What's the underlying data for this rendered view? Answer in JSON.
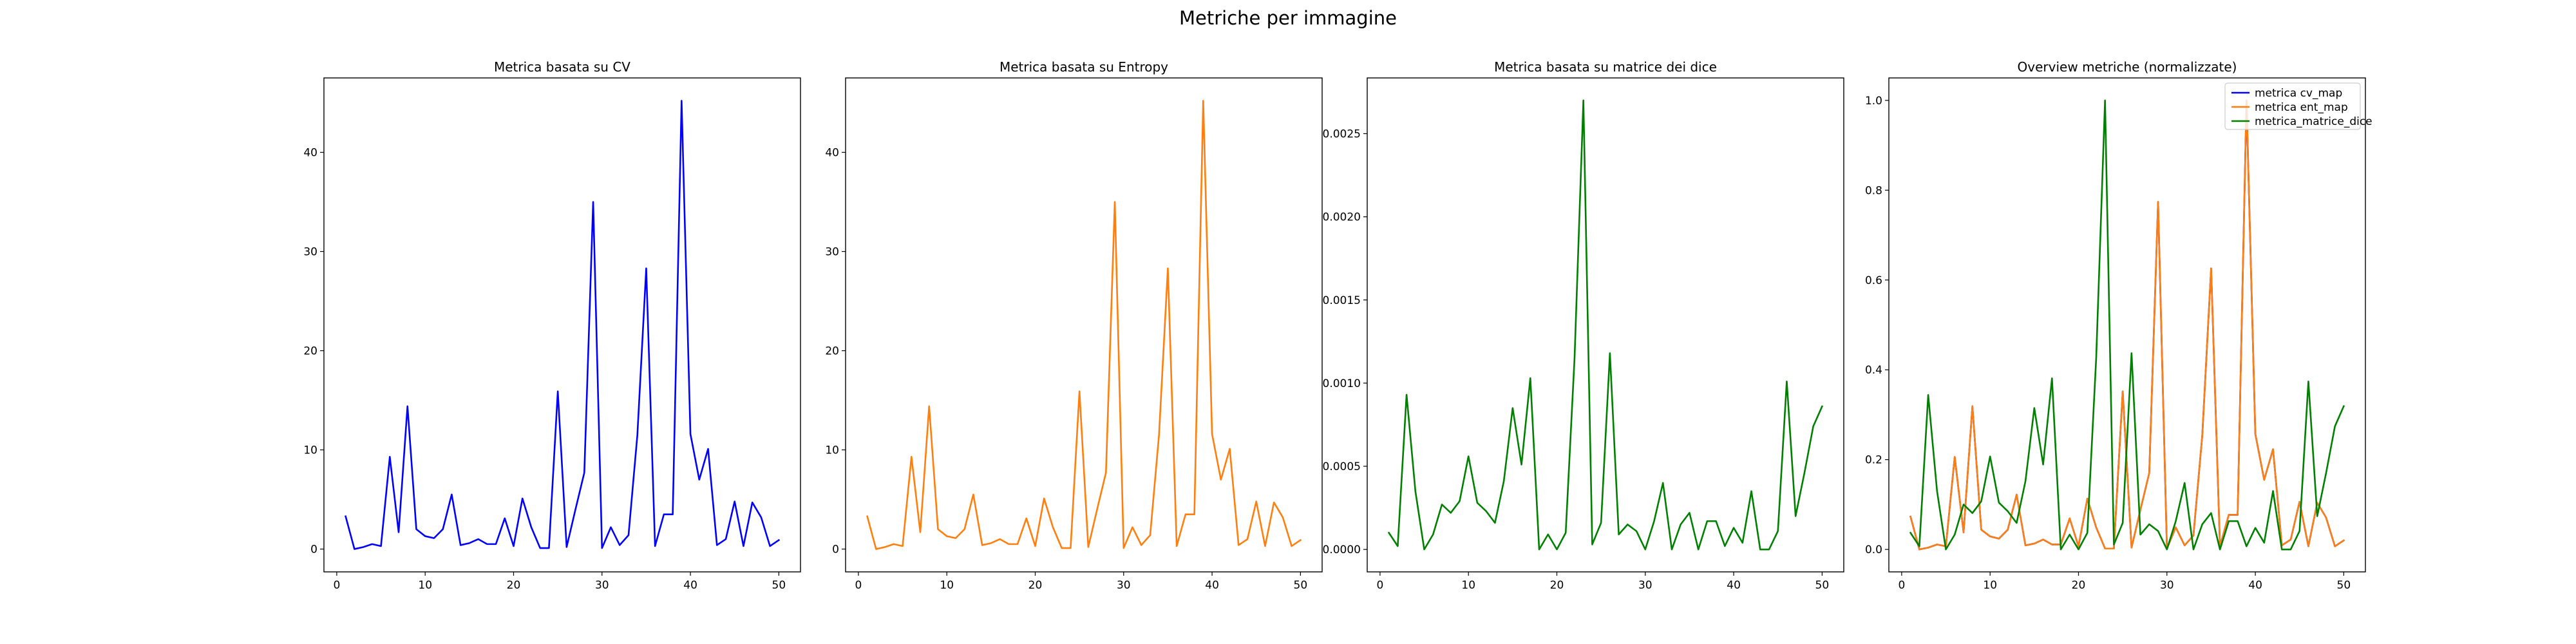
{
  "figure": {
    "title": "Metriche per immagine"
  },
  "chart_data": [
    {
      "type": "line",
      "title": "Metrica basata su CV",
      "xlabel": "",
      "ylabel": "",
      "xlim": [
        -1.45,
        52.45
      ],
      "ylim": [
        -2.3,
        47.5
      ],
      "xticks": [
        0,
        10,
        20,
        30,
        40,
        50
      ],
      "yticks": [
        0,
        10,
        20,
        30,
        40
      ],
      "grid": false,
      "legend": "none",
      "series": [
        {
          "color": "#0000ff",
          "x": [
            1,
            2,
            3,
            4,
            5,
            6,
            7,
            8,
            9,
            10,
            11,
            12,
            13,
            14,
            15,
            16,
            17,
            18,
            19,
            20,
            21,
            22,
            23,
            24,
            25,
            26,
            27,
            28,
            29,
            30,
            31,
            32,
            33,
            34,
            35,
            36,
            37,
            38,
            39,
            40,
            41,
            42,
            43,
            44,
            45,
            46,
            47,
            48,
            49,
            50
          ],
          "y": [
            3.3,
            0,
            0.2,
            0.5,
            0.3,
            9.3,
            1.7,
            14.4,
            2,
            1.3,
            1.1,
            2,
            5.5,
            0.4,
            0.6,
            1,
            0.5,
            0.5,
            3.1,
            0.3,
            5.1,
            2.2,
            0.1,
            0.1,
            15.9,
            0.2,
            4,
            7.7,
            35,
            0.1,
            2.2,
            0.4,
            1.4,
            11.5,
            28.3,
            0.3,
            3.5,
            3.5,
            45.2,
            11.6,
            7,
            10.1,
            0.4,
            1,
            4.8,
            0.3,
            4.7,
            3.2,
            0.3,
            0.9
          ]
        }
      ]
    },
    {
      "type": "line",
      "title": "Metrica basata su Entropy",
      "xlabel": "",
      "ylabel": "",
      "xlim": [
        -1.45,
        52.45
      ],
      "ylim": [
        -2.3,
        47.5
      ],
      "xticks": [
        0,
        10,
        20,
        30,
        40,
        50
      ],
      "yticks": [
        0,
        10,
        20,
        30,
        40
      ],
      "grid": false,
      "legend": "none",
      "series": [
        {
          "color": "#ff7f0e",
          "x": [
            1,
            2,
            3,
            4,
            5,
            6,
            7,
            8,
            9,
            10,
            11,
            12,
            13,
            14,
            15,
            16,
            17,
            18,
            19,
            20,
            21,
            22,
            23,
            24,
            25,
            26,
            27,
            28,
            29,
            30,
            31,
            32,
            33,
            34,
            35,
            36,
            37,
            38,
            39,
            40,
            41,
            42,
            43,
            44,
            45,
            46,
            47,
            48,
            49,
            50
          ],
          "y": [
            3.3,
            0,
            0.2,
            0.5,
            0.3,
            9.3,
            1.7,
            14.4,
            2,
            1.3,
            1.1,
            2,
            5.5,
            0.4,
            0.6,
            1,
            0.5,
            0.5,
            3.1,
            0.3,
            5.1,
            2.2,
            0.1,
            0.1,
            15.9,
            0.2,
            4,
            7.7,
            35,
            0.1,
            2.2,
            0.4,
            1.4,
            11.5,
            28.3,
            0.3,
            3.5,
            3.5,
            45.2,
            11.6,
            7,
            10.1,
            0.4,
            1,
            4.8,
            0.3,
            4.7,
            3.2,
            0.3,
            0.9
          ]
        }
      ]
    },
    {
      "type": "line",
      "title": "Metrica basata su matrice dei dice",
      "xlabel": "",
      "ylabel": "",
      "xlim": [
        -1.45,
        52.45
      ],
      "ylim": [
        -0.000135,
        0.002835
      ],
      "xticks": [
        0,
        10,
        20,
        30,
        40,
        50
      ],
      "yticks": [
        0,
        0.0005,
        0.001,
        0.0015,
        0.002,
        0.0025
      ],
      "ytick_labels": [
        "0.0000",
        "0.0005",
        "0.0010",
        "0.0015",
        "0.0020",
        "0.0025"
      ],
      "grid": false,
      "legend": "none",
      "series": [
        {
          "color": "#008000",
          "x": [
            1,
            2,
            3,
            4,
            5,
            6,
            7,
            8,
            9,
            10,
            11,
            12,
            13,
            14,
            15,
            16,
            17,
            18,
            19,
            20,
            21,
            22,
            23,
            24,
            25,
            26,
            27,
            28,
            29,
            30,
            31,
            32,
            33,
            34,
            35,
            36,
            37,
            38,
            39,
            40,
            41,
            42,
            43,
            44,
            45,
            46,
            47,
            48,
            49,
            50
          ],
          "y": [
            0.0001,
            2e-05,
            0.00093,
            0.00035,
            0,
            9e-05,
            0.00027,
            0.00022,
            0.00029,
            0.00056,
            0.00028,
            0.00023,
            0.00016,
            0.00041,
            0.00085,
            0.00051,
            0.00103,
            0,
            9e-05,
            0,
            0.0001,
            0.00115,
            0.0027,
            3e-05,
            0.00016,
            0.00118,
            9e-05,
            0.00015,
            0.00011,
            0,
            0.00017,
            0.0004,
            0,
            0.00015,
            0.00022,
            0,
            0.00017,
            0.00017,
            2e-05,
            0.00013,
            4e-05,
            0.00035,
            0,
            0,
            0.00011,
            0.00101,
            0.0002,
            0.00046,
            0.00074,
            0.00086
          ]
        }
      ]
    },
    {
      "type": "line",
      "title": "Overview metriche (normalizzate)",
      "xlabel": "",
      "ylabel": "",
      "xlim": [
        -1.45,
        52.45
      ],
      "ylim": [
        -0.05,
        1.05
      ],
      "xticks": [
        0,
        10,
        20,
        30,
        40,
        50
      ],
      "yticks": [
        0,
        0.2,
        0.4,
        0.6,
        0.8,
        1.0
      ],
      "ytick_labels": [
        "0.0",
        "0.2",
        "0.4",
        "0.6",
        "0.8",
        "1.0"
      ],
      "grid": false,
      "legend": "top-right",
      "series": [
        {
          "name": "metrica cv_map",
          "color": "#0000ff",
          "x": [
            1,
            2,
            3,
            4,
            5,
            6,
            7,
            8,
            9,
            10,
            11,
            12,
            13,
            14,
            15,
            16,
            17,
            18,
            19,
            20,
            21,
            22,
            23,
            24,
            25,
            26,
            27,
            28,
            29,
            30,
            31,
            32,
            33,
            34,
            35,
            36,
            37,
            38,
            39,
            40,
            41,
            42,
            43,
            44,
            45,
            46,
            47,
            48,
            49,
            50
          ],
          "y": [
            0.073,
            0,
            0.004,
            0.011,
            0.007,
            0.206,
            0.038,
            0.319,
            0.044,
            0.029,
            0.024,
            0.044,
            0.122,
            0.009,
            0.013,
            0.022,
            0.011,
            0.011,
            0.069,
            0.007,
            0.113,
            0.049,
            0.002,
            0.002,
            0.352,
            0.004,
            0.088,
            0.17,
            0.774,
            0.002,
            0.049,
            0.009,
            0.031,
            0.254,
            0.626,
            0.007,
            0.077,
            0.077,
            1,
            0.257,
            0.155,
            0.223,
            0.009,
            0.022,
            0.106,
            0.007,
            0.104,
            0.071,
            0.007,
            0.02
          ]
        },
        {
          "name": "metrica ent_map",
          "color": "#ff7f0e",
          "x": [
            1,
            2,
            3,
            4,
            5,
            6,
            7,
            8,
            9,
            10,
            11,
            12,
            13,
            14,
            15,
            16,
            17,
            18,
            19,
            20,
            21,
            22,
            23,
            24,
            25,
            26,
            27,
            28,
            29,
            30,
            31,
            32,
            33,
            34,
            35,
            36,
            37,
            38,
            39,
            40,
            41,
            42,
            43,
            44,
            45,
            46,
            47,
            48,
            49,
            50
          ],
          "y": [
            0.073,
            0,
            0.004,
            0.011,
            0.007,
            0.206,
            0.038,
            0.319,
            0.044,
            0.029,
            0.024,
            0.044,
            0.122,
            0.009,
            0.013,
            0.022,
            0.011,
            0.011,
            0.069,
            0.007,
            0.113,
            0.049,
            0.002,
            0.002,
            0.352,
            0.004,
            0.088,
            0.17,
            0.774,
            0.002,
            0.049,
            0.009,
            0.031,
            0.254,
            0.626,
            0.007,
            0.077,
            0.077,
            1,
            0.257,
            0.155,
            0.223,
            0.009,
            0.022,
            0.106,
            0.007,
            0.104,
            0.071,
            0.007,
            0.02
          ]
        },
        {
          "name": "metrica_matrice_dice",
          "color": "#008000",
          "x": [
            1,
            2,
            3,
            4,
            5,
            6,
            7,
            8,
            9,
            10,
            11,
            12,
            13,
            14,
            15,
            16,
            17,
            18,
            19,
            20,
            21,
            22,
            23,
            24,
            25,
            26,
            27,
            28,
            29,
            30,
            31,
            32,
            33,
            34,
            35,
            36,
            37,
            38,
            39,
            40,
            41,
            42,
            43,
            44,
            45,
            46,
            47,
            48,
            49,
            50
          ],
          "y": [
            0.037,
            0.007,
            0.344,
            0.13,
            0,
            0.033,
            0.1,
            0.081,
            0.107,
            0.207,
            0.104,
            0.085,
            0.059,
            0.152,
            0.315,
            0.189,
            0.381,
            0,
            0.033,
            0,
            0.037,
            0.426,
            1,
            0.011,
            0.059,
            0.437,
            0.033,
            0.056,
            0.041,
            0,
            0.063,
            0.148,
            0,
            0.056,
            0.081,
            0,
            0.063,
            0.063,
            0.007,
            0.048,
            0.015,
            0.13,
            0,
            0,
            0.041,
            0.374,
            0.074,
            0.17,
            0.274,
            0.319
          ]
        }
      ]
    }
  ]
}
